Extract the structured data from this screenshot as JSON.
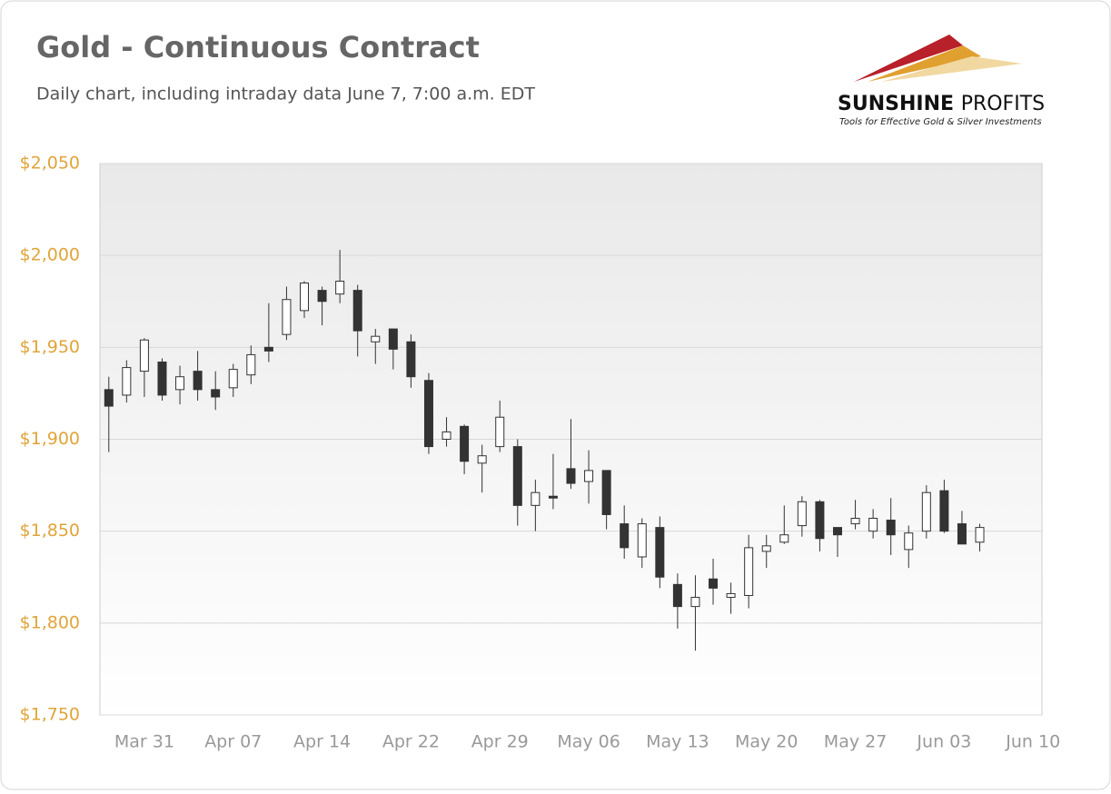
{
  "chart_data": {
    "type": "candlestick",
    "title": "Gold - Continuous Contract",
    "subtitle": "Daily chart, including intraday data June 7, 7:00 a.m. EDT",
    "categories": [
      null,
      null,
      "Mar 31",
      null,
      null,
      null,
      null,
      "Apr 07",
      null,
      null,
      null,
      null,
      "Apr 14",
      null,
      null,
      null,
      null,
      "Apr 22",
      null,
      null,
      null,
      null,
      "Apr 29",
      null,
      null,
      null,
      null,
      "May 06",
      null,
      null,
      null,
      null,
      "May 13",
      null,
      null,
      null,
      null,
      "May 20",
      null,
      null,
      null,
      null,
      "May 27",
      null,
      null,
      null,
      null,
      "Jun 03",
      null,
      null,
      null,
      null,
      "Jun 10"
    ],
    "open": [
      1927,
      1924,
      1937,
      1942,
      1927,
      1937,
      1927,
      1928,
      1935,
      1950,
      1957,
      1970,
      1981,
      1979,
      1981,
      1953,
      1960,
      1953,
      1932,
      1900,
      1907,
      1887,
      1896,
      1896,
      1864,
      1869,
      1884,
      1877,
      1883,
      1854,
      1836,
      1852,
      1821,
      1809,
      1824,
      1814,
      1815,
      1839,
      1844,
      1853,
      1866,
      1852,
      1854,
      1850,
      1856,
      1840,
      1850,
      1872,
      1854,
      1844,
      null,
      null,
      null
    ],
    "high": [
      1934,
      1943,
      1955,
      1944,
      1940,
      1948,
      1937,
      1941,
      1951,
      1974,
      1983,
      1986,
      1983,
      2003,
      1984,
      1960,
      1960,
      1957,
      1936,
      1912,
      1908,
      1897,
      1921,
      1900,
      1878,
      1892,
      1911,
      1894,
      1883,
      1864,
      1857,
      1858,
      1827,
      1826,
      1835,
      1822,
      1848,
      1848,
      1864,
      1869,
      1867,
      1852,
      1867,
      1862,
      1868,
      1853,
      1875,
      1878,
      1861,
      1854,
      null,
      null,
      null
    ],
    "low": [
      1893,
      1920,
      1923,
      1921,
      1919,
      1921,
      1916,
      1923,
      1930,
      1942,
      1954,
      1966,
      1962,
      1974,
      1945,
      1941,
      1938,
      1928,
      1892,
      1896,
      1881,
      1871,
      1893,
      1853,
      1850,
      1862,
      1873,
      1865,
      1851,
      1835,
      1830,
      1819,
      1797,
      1785,
      1810,
      1805,
      1808,
      1830,
      1843,
      1847,
      1839,
      1836,
      1851,
      1846,
      1837,
      1830,
      1846,
      1849,
      1843,
      1839,
      null,
      null,
      null
    ],
    "close": [
      1918,
      1939,
      1954,
      1924,
      1934,
      1927,
      1923,
      1938,
      1946,
      1948,
      1976,
      1985,
      1975,
      1986,
      1959,
      1956,
      1949,
      1934,
      1896,
      1904,
      1888,
      1891,
      1912,
      1864,
      1871,
      1868,
      1876,
      1883,
      1859,
      1841,
      1854,
      1825,
      1809,
      1814,
      1819,
      1816,
      1841,
      1842,
      1848,
      1866,
      1846,
      1848,
      1857,
      1857,
      1848,
      1849,
      1871,
      1850,
      1843,
      1852,
      null,
      null,
      null
    ],
    "up_color": "#ffffff",
    "down_color": "#333333",
    "ylim": [
      1750,
      2050
    ],
    "yticks": [
      {
        "value": 1750,
        "label": "$1,750"
      },
      {
        "value": 1800,
        "label": "$1,800"
      },
      {
        "value": 1850,
        "label": "$1,850"
      },
      {
        "value": 1900,
        "label": "$1,900"
      },
      {
        "value": 1950,
        "label": "$1,950"
      },
      {
        "value": 2000,
        "label": "$2,000"
      },
      {
        "value": 2050,
        "label": "$2,050"
      }
    ],
    "grid": true
  },
  "logo": {
    "name_bold": "SUNSHINE",
    "name_light": "PROFITS",
    "tagline": "Tools for Effective Gold & Silver Investments"
  }
}
